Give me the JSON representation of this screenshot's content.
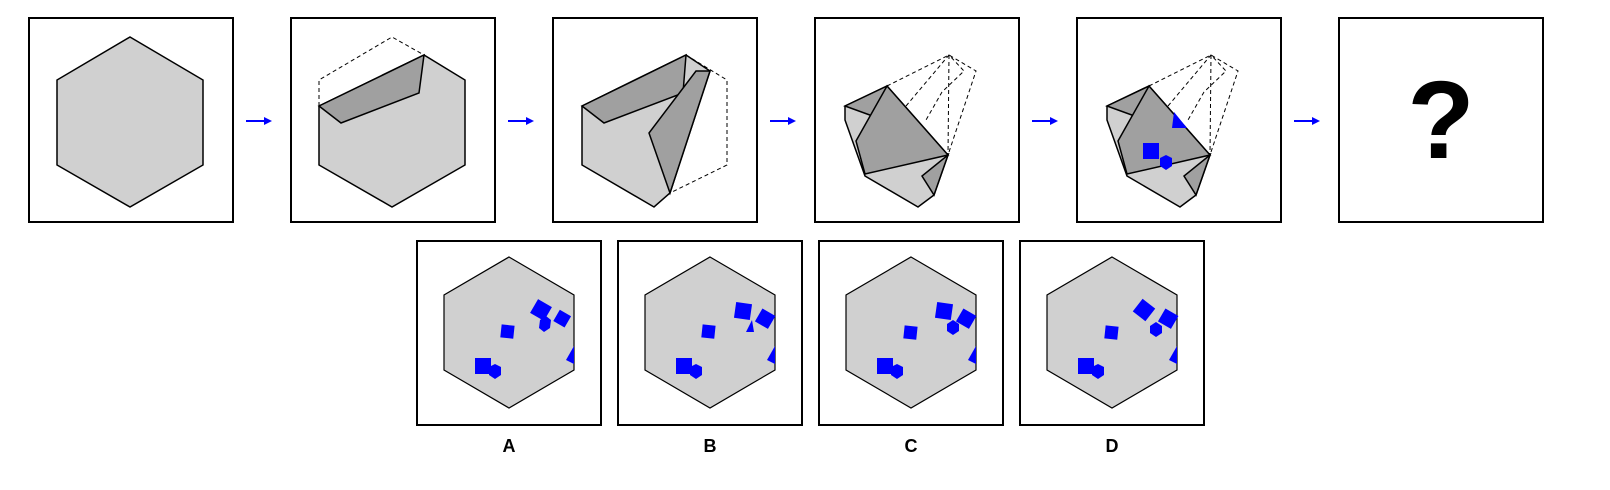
{
  "colors": {
    "paper": "#d0d0d0",
    "fold": "#a0a0a0",
    "frame": "#000000",
    "arrow": "#0000ff",
    "marker": "#0000ff"
  },
  "sequence": {
    "question_text": "?",
    "arrow_icon": "arrow-right-icon"
  },
  "options": [
    {
      "label": "A"
    },
    {
      "label": "B"
    },
    {
      "label": "C"
    },
    {
      "label": "D"
    }
  ]
}
